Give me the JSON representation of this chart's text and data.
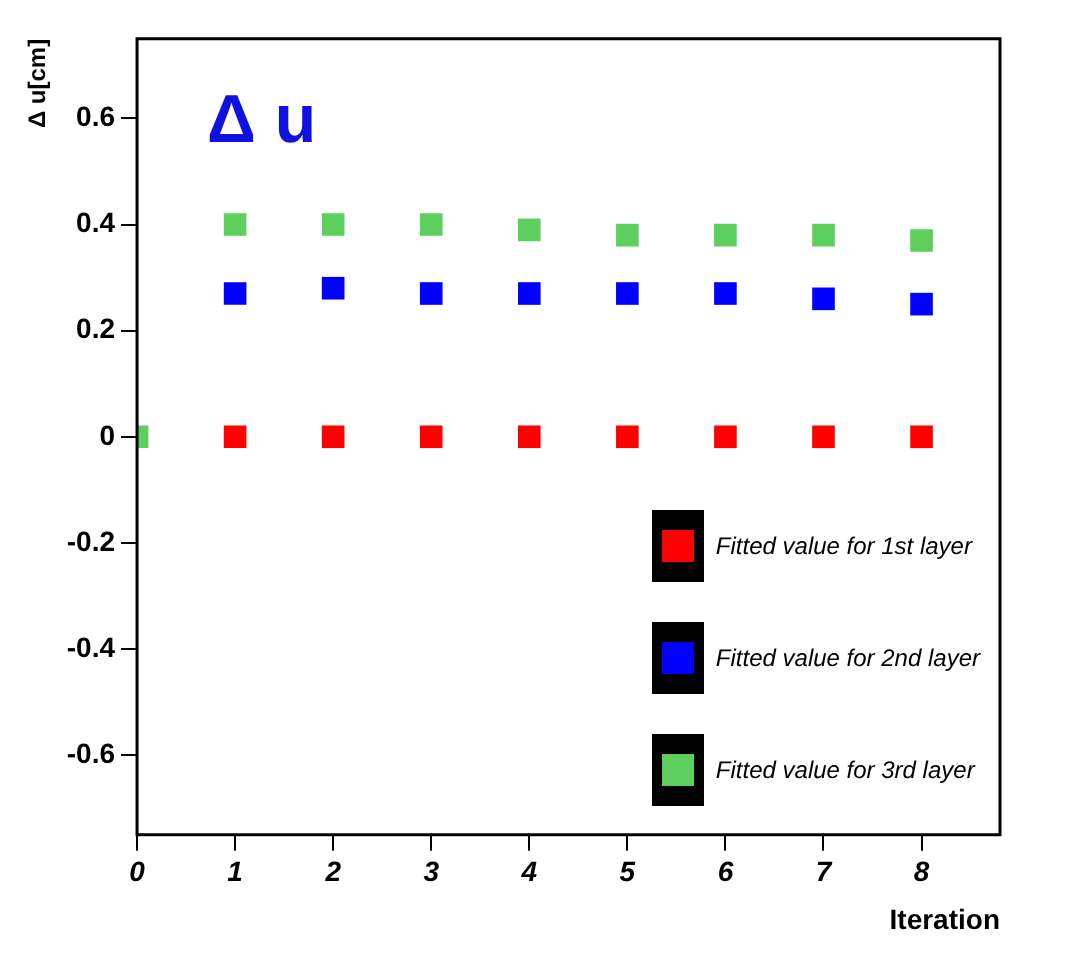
{
  "chart_data": {
    "type": "scatter",
    "title": "Δ u",
    "ylabel": "Δ u[cm]",
    "xlabel": "Iteration",
    "x": [
      0,
      1,
      2,
      3,
      4,
      5,
      6,
      7,
      8
    ],
    "series": [
      {
        "name": "Fitted value for 1st layer",
        "color": "#ff0000",
        "values": [
          null,
          0,
          0,
          0,
          0,
          0,
          0,
          0,
          0
        ]
      },
      {
        "name": "Fitted value for 2nd layer",
        "color": "#0000ff",
        "values": [
          null,
          0.27,
          0.28,
          0.27,
          0.27,
          0.27,
          0.27,
          0.26,
          0.25
        ]
      },
      {
        "name": "Fitted value for 3rd layer",
        "color": "#5ccf5c",
        "values": [
          0,
          0.4,
          0.4,
          0.4,
          0.39,
          0.38,
          0.38,
          0.38,
          0.37
        ]
      }
    ],
    "xlim": [
      0,
      8.8
    ],
    "xticks": [
      0,
      1,
      2,
      3,
      4,
      5,
      6,
      7,
      8
    ],
    "ylim": [
      -0.75,
      0.75
    ],
    "yticks": [
      -0.6,
      -0.4,
      -0.2,
      0,
      0.2,
      0.4,
      0.6
    ],
    "grid": false,
    "legend": "bottom right",
    "marker": "square"
  }
}
